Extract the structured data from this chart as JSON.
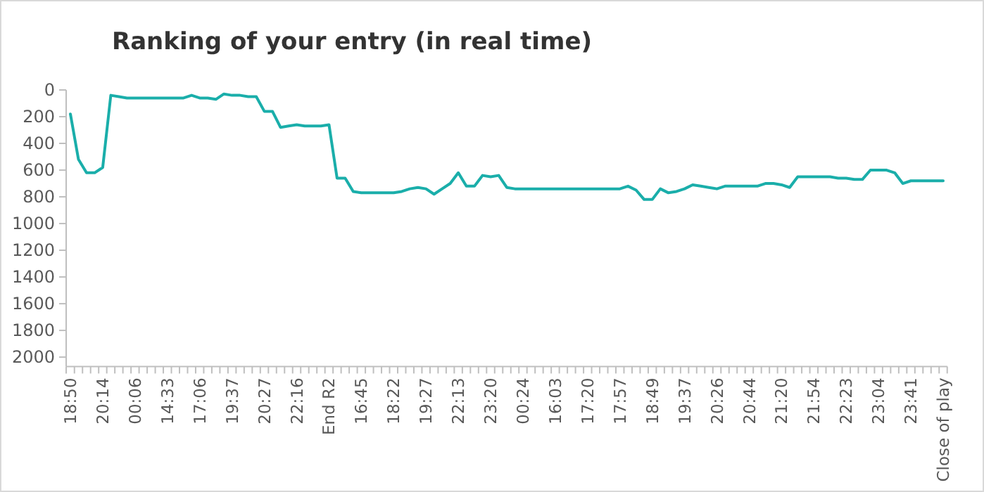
{
  "chart_data": {
    "type": "line",
    "title": "Ranking of your entry (in real time)",
    "categories": [
      "18:50",
      null,
      null,
      null,
      "20:14",
      null,
      null,
      null,
      "00:06",
      null,
      null,
      null,
      "14:33",
      null,
      null,
      null,
      "17:06",
      null,
      null,
      null,
      "19:37",
      null,
      null,
      null,
      "20:27",
      null,
      null,
      null,
      "22:16",
      null,
      null,
      null,
      "End R2",
      null,
      null,
      null,
      "16:45",
      null,
      null,
      null,
      "18:22",
      null,
      null,
      null,
      "19:27",
      null,
      null,
      null,
      "22:13",
      null,
      null,
      null,
      "23:20",
      null,
      null,
      null,
      "00:24",
      null,
      null,
      null,
      "16:03",
      null,
      null,
      null,
      "17:20",
      null,
      null,
      null,
      "17:57",
      null,
      null,
      null,
      "18:49",
      null,
      null,
      null,
      "19:37",
      null,
      null,
      null,
      "20:26",
      null,
      null,
      null,
      "20:44",
      null,
      null,
      null,
      "21:20",
      null,
      null,
      null,
      "21:54",
      null,
      null,
      null,
      "22:23",
      null,
      null,
      null,
      "23:04",
      null,
      null,
      null,
      "23:41",
      null,
      null,
      null,
      "Close of play"
    ],
    "series": [
      {
        "color": "#1aaeaa",
        "values": [
          180,
          520,
          620,
          620,
          580,
          40,
          50,
          60,
          60,
          60,
          60,
          60,
          60,
          60,
          60,
          40,
          60,
          60,
          70,
          30,
          40,
          40,
          50,
          50,
          160,
          160,
          280,
          270,
          260,
          270,
          270,
          270,
          260,
          660,
          660,
          760,
          770,
          770,
          770,
          770,
          770,
          760,
          740,
          730,
          740,
          780,
          740,
          700,
          620,
          720,
          720,
          640,
          650,
          640,
          730,
          740,
          740,
          740,
          740,
          740,
          740,
          740,
          740,
          740,
          740,
          740,
          740,
          740,
          740,
          720,
          750,
          820,
          820,
          740,
          770,
          760,
          740,
          710,
          720,
          730,
          740,
          720,
          720,
          720,
          720,
          720,
          700,
          700,
          710,
          730,
          650,
          650,
          650,
          650,
          650,
          660,
          660,
          670,
          670,
          600,
          600,
          600,
          620,
          700,
          680,
          680,
          680,
          680,
          680
        ]
      }
    ],
    "ylim": [
      2070,
      0
    ],
    "yticks": [
      0,
      200,
      400,
      600,
      800,
      1000,
      1200,
      1400,
      1600,
      1800,
      2000
    ],
    "grid": false,
    "marker": "none",
    "line_style": "solid"
  }
}
